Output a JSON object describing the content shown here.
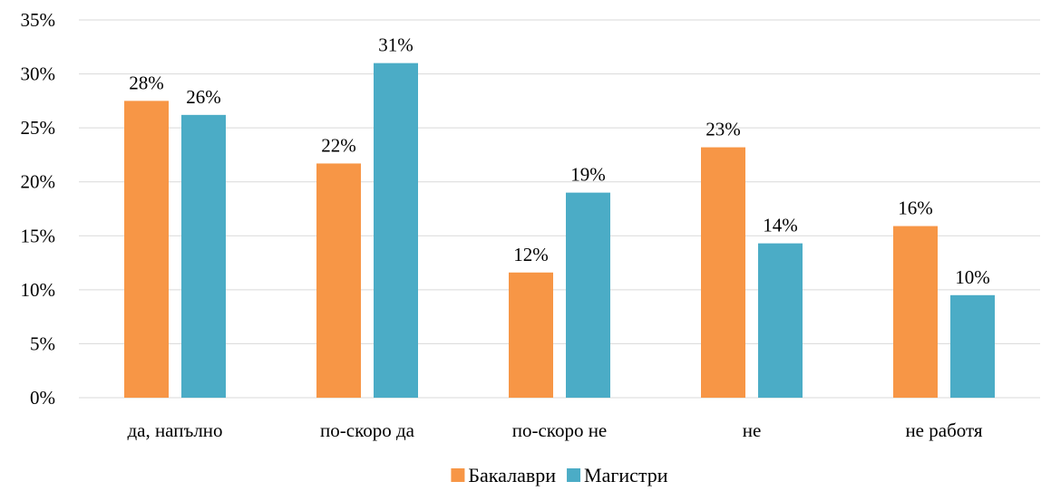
{
  "chart_data": {
    "type": "bar",
    "categories": [
      "да, напълно",
      "по-скоро да",
      "по-скоро не",
      "не",
      "не работя"
    ],
    "series": [
      {
        "name": "Бакалаври",
        "values": [
          27.5,
          21.7,
          11.6,
          23.2,
          15.9
        ],
        "labels": [
          "28%",
          "22%",
          "12%",
          "23%",
          "16%"
        ],
        "color": "#f79646"
      },
      {
        "name": "Магистри",
        "values": [
          26.2,
          31.0,
          19.0,
          14.3,
          9.5
        ],
        "labels": [
          "26%",
          "31%",
          "19%",
          "14%",
          "10%"
        ],
        "color": "#4bacc6"
      }
    ],
    "ylim": [
      0,
      35
    ],
    "yticks": [
      "0%",
      "5%",
      "10%",
      "15%",
      "20%",
      "25%",
      "30%",
      "35%"
    ],
    "grid": true,
    "legend": "bottom-center"
  }
}
